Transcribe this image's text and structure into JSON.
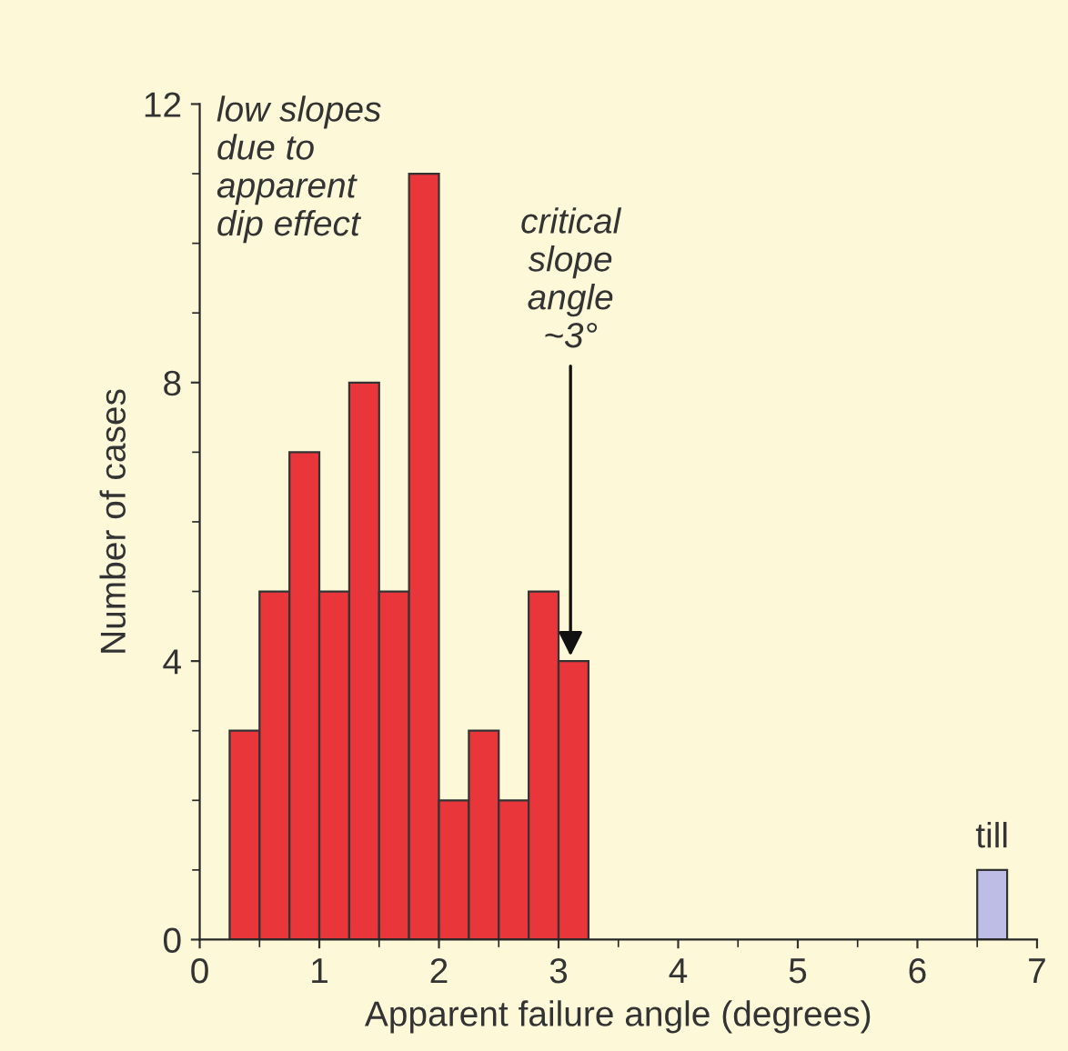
{
  "chart_data": {
    "type": "histogram",
    "bins": [
      0.25,
      0.5,
      0.75,
      1.0,
      1.25,
      1.5,
      1.75,
      2.0,
      2.25,
      2.5,
      2.75,
      3.0,
      3.25,
      3.5,
      3.75,
      4.0,
      4.25,
      4.5,
      4.75,
      5.0,
      5.25,
      5.5,
      5.75,
      6.0,
      6.25,
      6.5,
      6.75
    ],
    "values": [
      3,
      5,
      7,
      5,
      8,
      5,
      11,
      2,
      3,
      2,
      5,
      4,
      0,
      0,
      0,
      0,
      0,
      0,
      0,
      0,
      0,
      0,
      0,
      0,
      0,
      1
    ],
    "colors": [
      "#e8363a",
      "#e8363a",
      "#e8363a",
      "#e8363a",
      "#e8363a",
      "#e8363a",
      "#e8363a",
      "#e8363a",
      "#e8363a",
      "#e8363a",
      "#e8363a",
      "#e8363a",
      "#e8363a",
      "#e8363a",
      "#e8363a",
      "#e8363a",
      "#e8363a",
      "#e8363a",
      "#e8363a",
      "#e8363a",
      "#e8363a",
      "#e8363a",
      "#e8363a",
      "#e8363a",
      "#e8363a",
      "#bdbde6"
    ],
    "xlabel": "Apparent failure angle (degrees)",
    "ylabel": "Number of cases",
    "xlim": [
      0,
      7
    ],
    "xticks": [
      0,
      1,
      2,
      3,
      4,
      5,
      6,
      7
    ],
    "ylim": [
      0,
      12
    ],
    "yticks": [
      0,
      4,
      8,
      12
    ],
    "grid": false,
    "legend": false,
    "annotations": [
      "low slopes\ndue to\napparent\ndip effect",
      {
        "text": "critical\nslope\nangle\n~3°",
        "x": 3.1,
        "y": 4
      },
      {
        "text": "till",
        "x": 6.625,
        "y": 1
      }
    ]
  }
}
